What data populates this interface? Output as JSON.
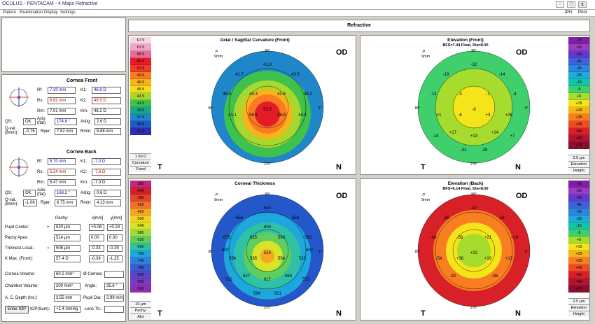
{
  "window": {
    "title": "OCULUS - PENTACAM - 4 Maps Refractive",
    "min": "-",
    "max": "□",
    "close": "x"
  },
  "menu": {
    "items": [
      "Patient",
      "Examination",
      "Display",
      "Settings"
    ],
    "right": [
      "JPG",
      "Print"
    ]
  },
  "header": {
    "title": "Refractive"
  },
  "cornea_front": {
    "title": "Cornea Front",
    "rf_l": "Rf:",
    "rf": "7.20 mm",
    "rs_l": "Rs:",
    "rs": "6.82 mm",
    "rm_l": "Rm:",
    "rm": "7.01 mm",
    "k1_l": "K1:",
    "k1": "46.9 D",
    "k2_l": "K2:",
    "k2": "49.5 D",
    "km_l": "Km:",
    "km": "48.2 D",
    "qs_l": "QS:",
    "qs": "OK",
    "axis_l": "Axis: (flat)",
    "axis": "174.8 °",
    "astig_l": "Astig:",
    "astig": "2.6 D",
    "qval_l": "Q-val. (8mm):",
    "qval": "-0.76",
    "rper_l": "Rper:",
    "rper": "7.82 mm",
    "rmin_l": "Rmin:",
    "rmin": "5.88 mm"
  },
  "cornea_back": {
    "title": "Cornea Back",
    "rf": "5.70 mm",
    "rs": "5.24 mm",
    "rm": "5.47 mm",
    "k1": "-7.0 D",
    "k2": "-7.6 D",
    "km": "-7.3 D",
    "qs": "OK",
    "axis": "168.2 °",
    "astig": "0.6 D",
    "qval": "-1.06",
    "rper": "6.75 mm",
    "rmin": "4.13 mm"
  },
  "pachy": {
    "h_pachy": "Pachy:",
    "h_x": "x[mm]",
    "h_y": "y[mm]",
    "rows": [
      {
        "label": "Pupil Center:",
        "sym": "+",
        "val": "520 µm",
        "x": "+0.06",
        "y": "+0.24"
      },
      {
        "label": "Pachy Apex:",
        "sym": "",
        "val": "514 µm",
        "x": "0.00",
        "y": "0.00"
      },
      {
        "label": "Thinnest Locat.:",
        "sym": "○",
        "val": "508 µm",
        "x": "-0.33",
        "y": "-0.39"
      },
      {
        "label": "K Max. (Front):",
        "sym": "",
        "val": "57.4 D",
        "x": "-0.39",
        "y": "-1.25"
      }
    ]
  },
  "volumes": {
    "cv_l": "Cornea Volume:",
    "cv": "60.2 mm³",
    "oc_l": "Ø Cornea:",
    "oc": "",
    "chv_l": "Chamber Volume:",
    "chv": "200 mm³",
    "ang_l": "Angle:",
    "ang": "35.6 °",
    "acd_l": "A. C. Depth (Int.):",
    "acd": "3.55 mm",
    "pd_l": "Pupil Dia:",
    "pd": "2.99 mm",
    "iop_btn": "Enter IOP",
    "iop_l": "IOP(Sum):",
    "iop": "+1.4 mmHg",
    "lens_l": "Lens Th.:",
    "lens": ""
  },
  "maps": {
    "axial": {
      "title": "Axial / Sagittal Curvature (Front)",
      "eye": "OD",
      "zoom": "9mm",
      "scale": [
        "67.5",
        "61.5",
        "58.5",
        "55.5",
        "52.5",
        "49.5",
        "46.5",
        "45.5",
        "43.5",
        "41.5",
        "39.5",
        "37.5",
        "35.5",
        "31.5"
      ],
      "colors": [
        "#f7d7e6",
        "#f2a6c4",
        "#ea6a99",
        "#e51b28",
        "#f13a2a",
        "#f97b22",
        "#f7b31b",
        "#f1de1a",
        "#a8d82d",
        "#3fc14d",
        "#18a88a",
        "#1e86c9",
        "#2457c9",
        "#2a2fb0"
      ],
      "step": "1.50 D",
      "type": "Curvature",
      "mode": "Fixed",
      "labels": [
        "41.3",
        "41.7",
        "43.5",
        "46.0",
        "49.2",
        "44.3",
        "42.6",
        "41.1",
        "56.5",
        "53.5",
        "48.9",
        "44.4"
      ],
      "bl": "T",
      "br": "N"
    },
    "elev_front": {
      "title": "Elevation (Front)",
      "subtitle": "BFS=7.44 Float, Dia=8.00",
      "eye": "OD",
      "zoom": "9mm",
      "scale": [
        "-75",
        "-65",
        "-55",
        "-45",
        "-35",
        "-25",
        "-15",
        "-5",
        "+5",
        "+15",
        "+25",
        "+35",
        "+45",
        "+55",
        "+65",
        "+75"
      ],
      "colors": [
        "#7f1fa8",
        "#9b3bc4",
        "#5d3bcf",
        "#3d63d9",
        "#2b86e0",
        "#1dacd9",
        "#13c4a5",
        "#3fd06d",
        "#a5dc2d",
        "#f4e41a",
        "#f8b51a",
        "#f97e21",
        "#f04a24",
        "#d82028",
        "#b31432",
        "#8a0f2c"
      ],
      "step": "2.5 µm",
      "type": "Elevation",
      "mode": "Height",
      "labels": [
        "-32",
        "-19",
        "-14",
        "-13",
        "-4",
        "-3",
        "-1",
        "+1",
        "-6",
        "-8",
        "+3",
        "+26",
        "+17",
        "+14",
        "+13",
        "-14",
        "+7",
        "-31",
        "-28"
      ],
      "bl": "T",
      "br": "N"
    },
    "pachy": {
      "title": "Corneal Thickness",
      "eye": "OD",
      "zoom": "9mm",
      "scale": [
        "380",
        "340",
        "380",
        "420",
        "460",
        "500",
        "540",
        "580",
        "620",
        "660",
        "700",
        "740",
        "780",
        "820",
        "860",
        "900"
      ],
      "colors": [
        "#c0287e",
        "#d0202f",
        "#e2452a",
        "#f0712a",
        "#f7a624",
        "#f3d21e",
        "#d8e226",
        "#9fdb3a",
        "#5fce5e",
        "#2ec1a4",
        "#1ea7dc",
        "#2e7fde",
        "#3b5bd1",
        "#5a45c8",
        "#7b3bbf",
        "#8e2fb2"
      ],
      "step": "10 µm",
      "type": "Pachy:",
      "mode": "Abs",
      "labels": [
        "640",
        "656",
        "656",
        "675",
        "582",
        "625",
        "563",
        "554",
        "535",
        "514",
        "554",
        "523",
        "527",
        "560",
        "617",
        "632",
        "573",
        "584",
        "621",
        "607",
        "602",
        "600"
      ],
      "bl": "T",
      "br": "N"
    },
    "elev_back": {
      "title": "Elevation (Back)",
      "subtitle": "BFS=6.14 Float, Dia=8.00",
      "eye": "OD",
      "zoom": "9mm",
      "scale": [
        "-75",
        "-65",
        "-55",
        "-45",
        "-35",
        "-25",
        "-15",
        "-5",
        "+5",
        "+15",
        "+25",
        "+35",
        "+45",
        "+55",
        "+65",
        "+75"
      ],
      "colors": [
        "#7f1fa8",
        "#9b3bc4",
        "#5d3bcf",
        "#3d63d9",
        "#2b86e0",
        "#1dacd9",
        "#13c4a5",
        "#3fd06d",
        "#a5dc2d",
        "#f4e41a",
        "#f8b51a",
        "#f97e21",
        "#f04a24",
        "#d82028",
        "#b31432",
        "#8a0f2c"
      ],
      "step": "2.5 µm",
      "type": "Elevation",
      "mode": "Height",
      "labels": [
        "-47",
        "-36",
        "-61",
        "-24",
        "+19",
        "-56",
        "+21",
        "-54",
        "+36",
        "+32",
        "+19",
        "+13",
        "-92",
        "-88"
      ],
      "bl": "T",
      "br": "N"
    }
  },
  "degrees": {
    "top": "90°",
    "bottom": "270°",
    "left": "180°",
    "right": "0°"
  }
}
